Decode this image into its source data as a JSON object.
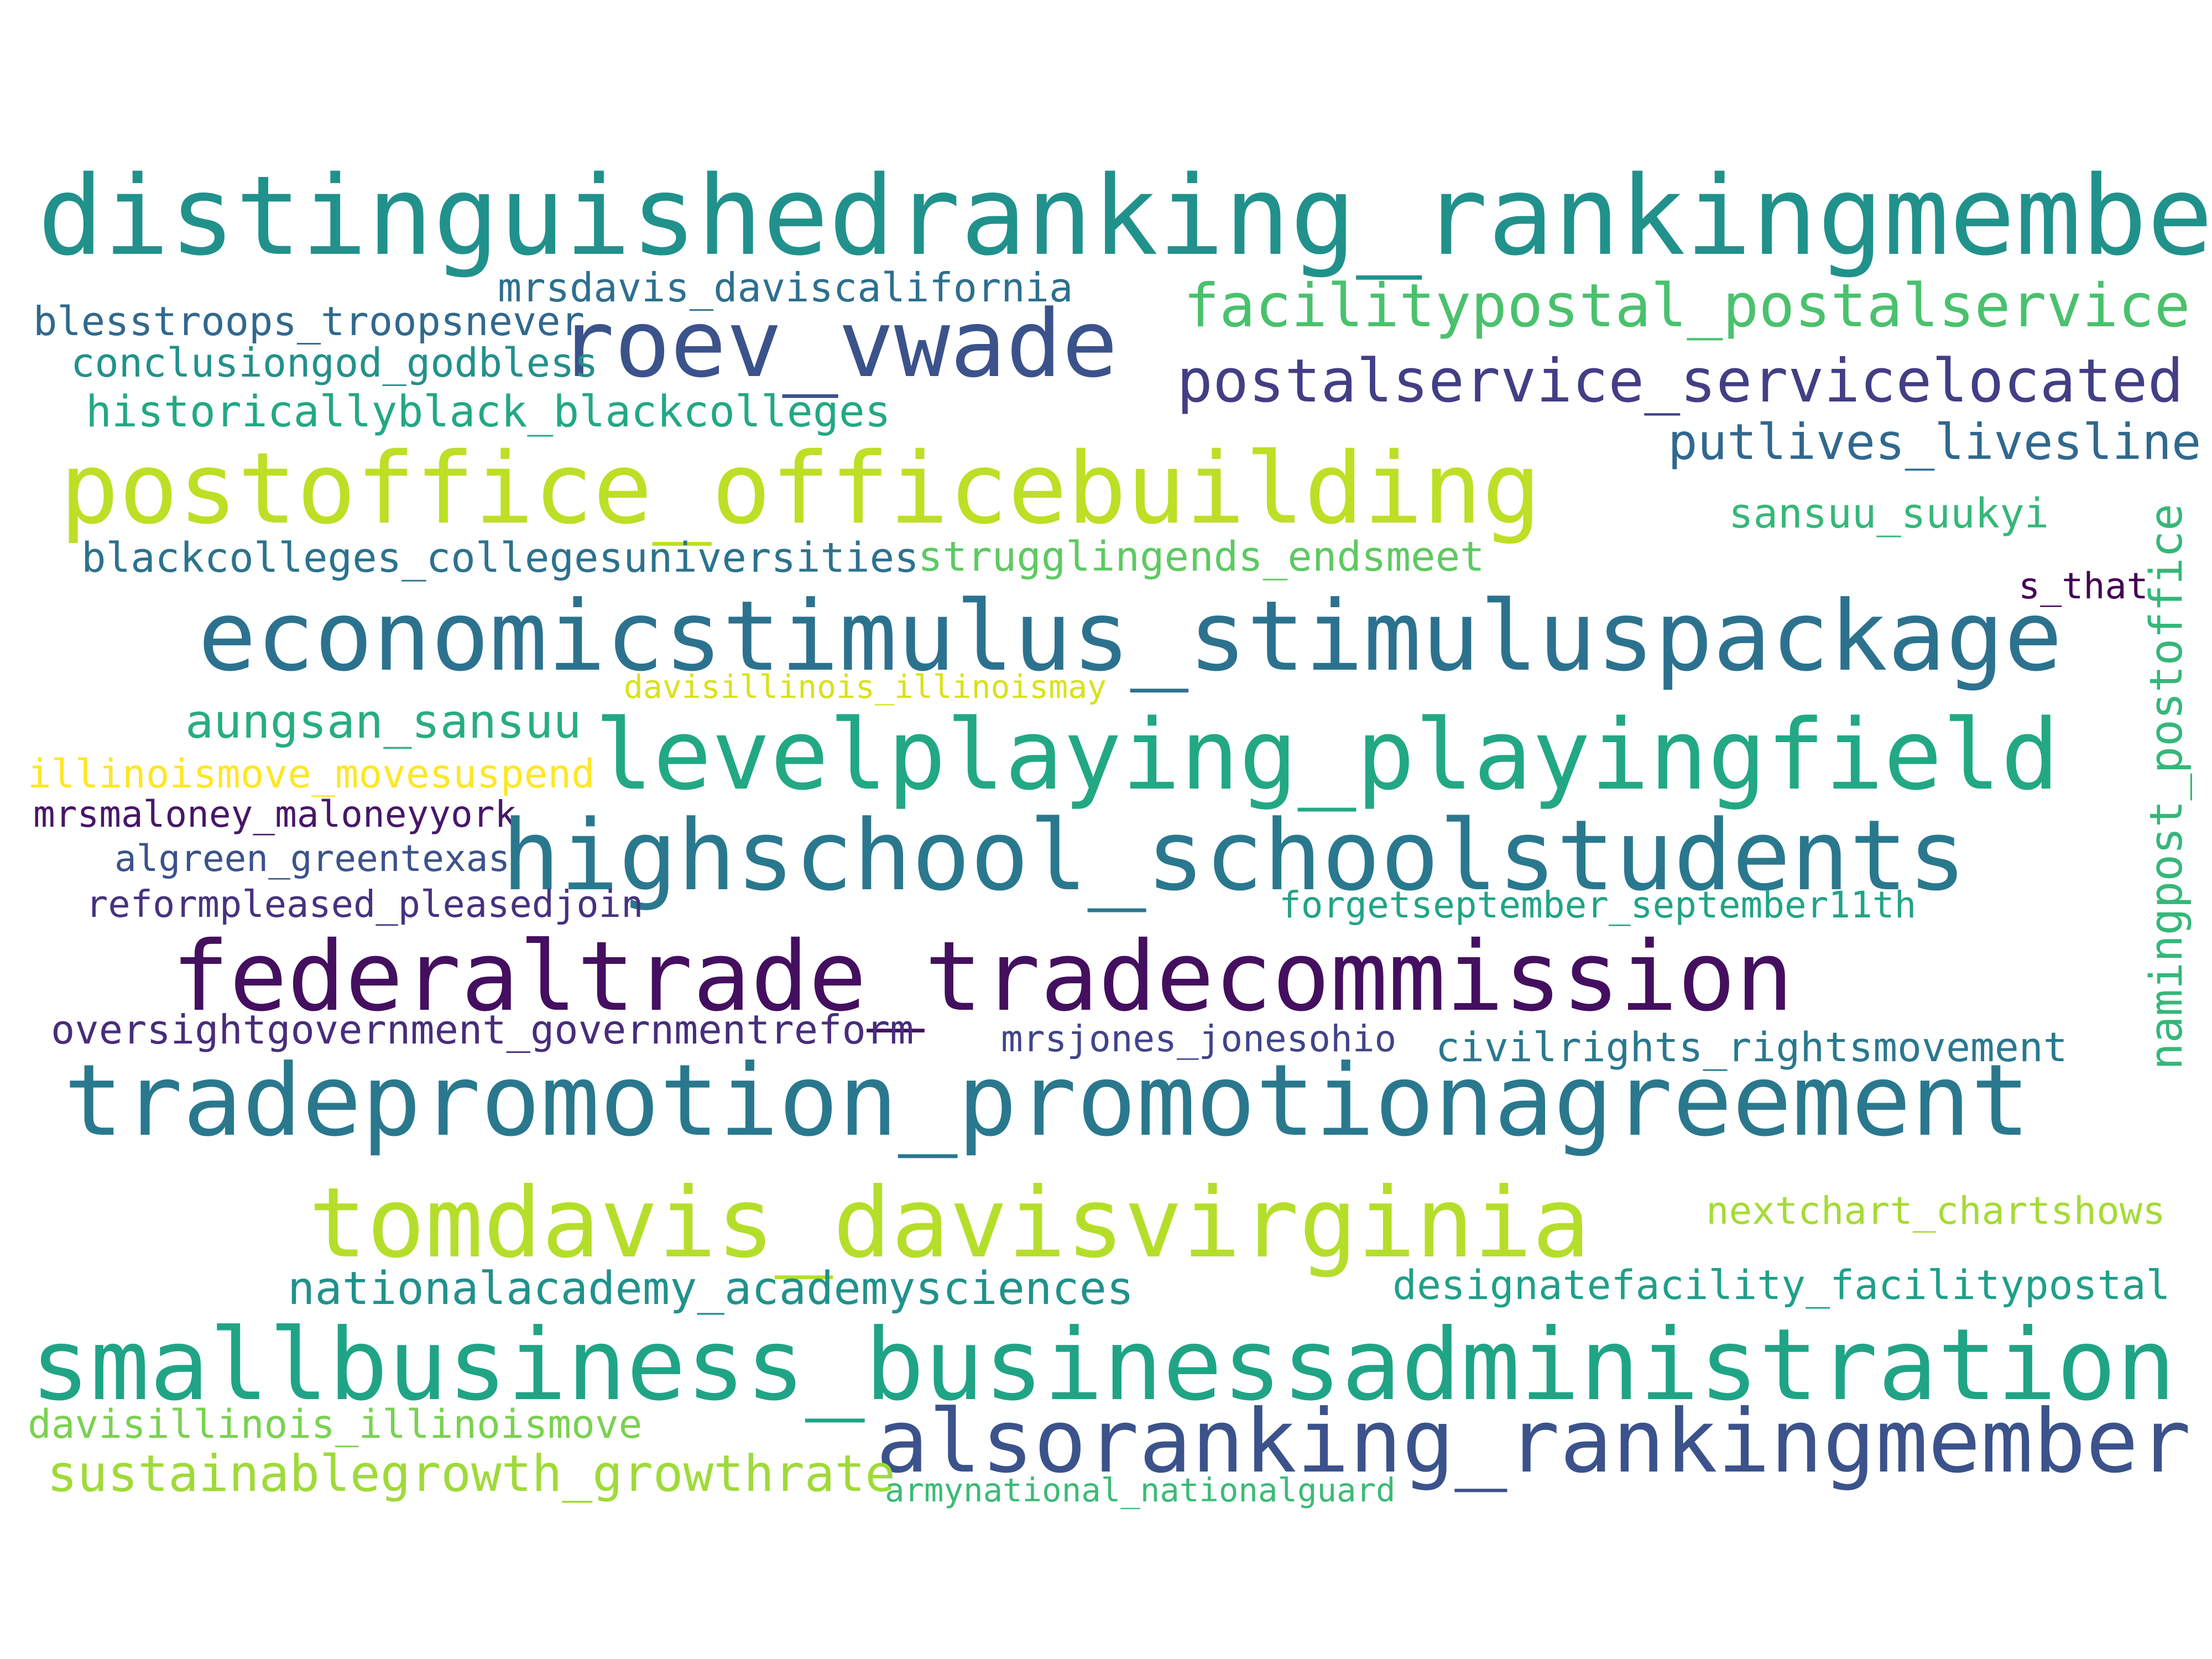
{
  "words": [
    {
      "text": "distinguishedranking_rankingmember",
      "color": "#21918c"
    },
    {
      "text": "mrsdavis_daviscalifornia",
      "color": "#2e6f8e"
    },
    {
      "text": "facilitypostal_postalservice",
      "color": "#4ac16d"
    },
    {
      "text": "blesstroops_troopsnever",
      "color": "#31688e"
    },
    {
      "text": "roev_vwade",
      "color": "#3b528b"
    },
    {
      "text": "conclusiongod_godbless",
      "color": "#21918c"
    },
    {
      "text": "postalservice_servicelocated",
      "color": "#433e85"
    },
    {
      "text": "historicallyblack_blackcolleges",
      "color": "#22a884"
    },
    {
      "text": "putlives_livesline",
      "color": "#31688e"
    },
    {
      "text": "postoffice_officebuilding",
      "color": "#bddf26"
    },
    {
      "text": "sansuu_suukyi",
      "color": "#35b779"
    },
    {
      "text": "namingpost_postoffice",
      "color": "#35b779"
    },
    {
      "text": "blackcolleges_collegesuniversities",
      "color": "#2c728e"
    },
    {
      "text": "strugglingends_endsmeet",
      "color": "#5ec962"
    },
    {
      "text": "s_that",
      "color": "#440154"
    },
    {
      "text": "economicstimulus_stimuluspackage",
      "color": "#2c728e"
    },
    {
      "text": "davisillinois_illinoismay",
      "color": "#d8e219"
    },
    {
      "text": "aungsan_sansuu",
      "color": "#27ad81"
    },
    {
      "text": "levelplaying_playingfield",
      "color": "#22a884"
    },
    {
      "text": "illinoismove_movesuspend",
      "color": "#fde725"
    },
    {
      "text": "mrsmaloney_maloneyyork",
      "color": "#481668"
    },
    {
      "text": "highschool_schoolstudents",
      "color": "#2a788e"
    },
    {
      "text": "algreen_greentexas",
      "color": "#3b528b"
    },
    {
      "text": "reformpleased_pleasedjoin",
      "color": "#46327e"
    },
    {
      "text": "forgetseptember_september11th",
      "color": "#20a486"
    },
    {
      "text": "federaltrade_tradecommission",
      "color": "#440f5f"
    },
    {
      "text": "oversightgovernment_governmentreform",
      "color": "#472d7b"
    },
    {
      "text": "mrsjones_jonesohio",
      "color": "#414487"
    },
    {
      "text": "civilrights_rightsmovement",
      "color": "#2a788e"
    },
    {
      "text": "tradepromotion_promotionagreement",
      "color": "#2a788e"
    },
    {
      "text": "tomdavis_davisvirginia",
      "color": "#b5de2b"
    },
    {
      "text": "nextchart_chartshows",
      "color": "#a5db36"
    },
    {
      "text": "nationalacademy_academysciences",
      "color": "#21918c"
    },
    {
      "text": "designatefacility_facilitypostal",
      "color": "#1fa088"
    },
    {
      "text": "smallbusiness_businessadministration",
      "color": "#20a486"
    },
    {
      "text": "davisillinois_illinoismove",
      "color": "#7ad151"
    },
    {
      "text": "alsoranking_rankingmember",
      "color": "#3b528b"
    },
    {
      "text": "sustainablegrowth_growthrate",
      "color": "#a0da39"
    },
    {
      "text": "armynational_nationalguard",
      "color": "#3bbb75"
    }
  ]
}
